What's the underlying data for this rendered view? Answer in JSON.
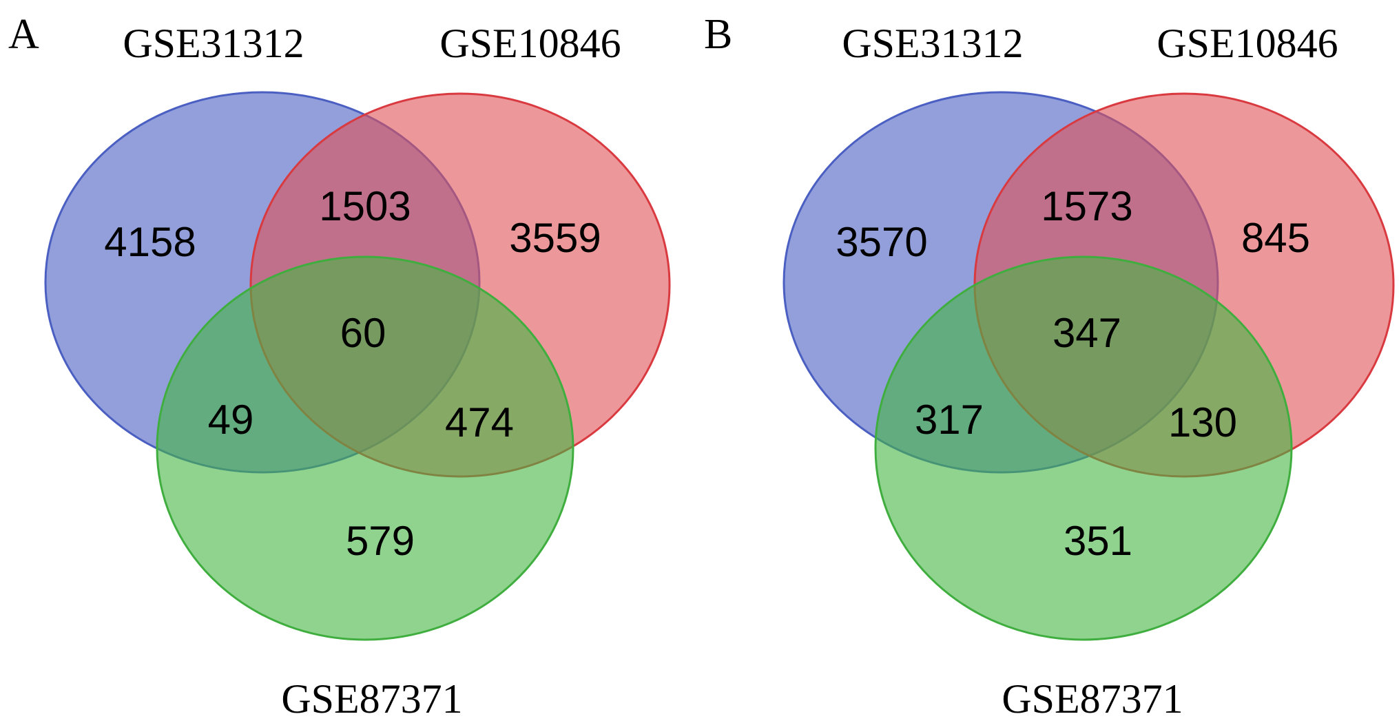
{
  "colors": {
    "set_a": "#4a5fc1",
    "set_b": "#e05257",
    "set_c": "#45b545",
    "stroke_a": "#4a5fc1",
    "stroke_b": "#d93a40",
    "stroke_c": "#3fae3f"
  },
  "panels": [
    {
      "letter": "A",
      "labels": {
        "set_a": "GSE31312",
        "set_b": "GSE10846",
        "set_c": "GSE87371"
      },
      "counts": {
        "a_only": "4158",
        "a_b": "1503",
        "b_only": "3559",
        "a_b_c": "60",
        "a_c": "49",
        "b_c": "474",
        "c_only": "579"
      }
    },
    {
      "letter": "B",
      "labels": {
        "set_a": "GSE31312",
        "set_b": "GSE10846",
        "set_c": "GSE87371"
      },
      "counts": {
        "a_only": "3570",
        "a_b": "1573",
        "b_only": "845",
        "a_b_c": "347",
        "a_c": "317",
        "b_c": "130",
        "c_only": "351"
      }
    }
  ]
}
